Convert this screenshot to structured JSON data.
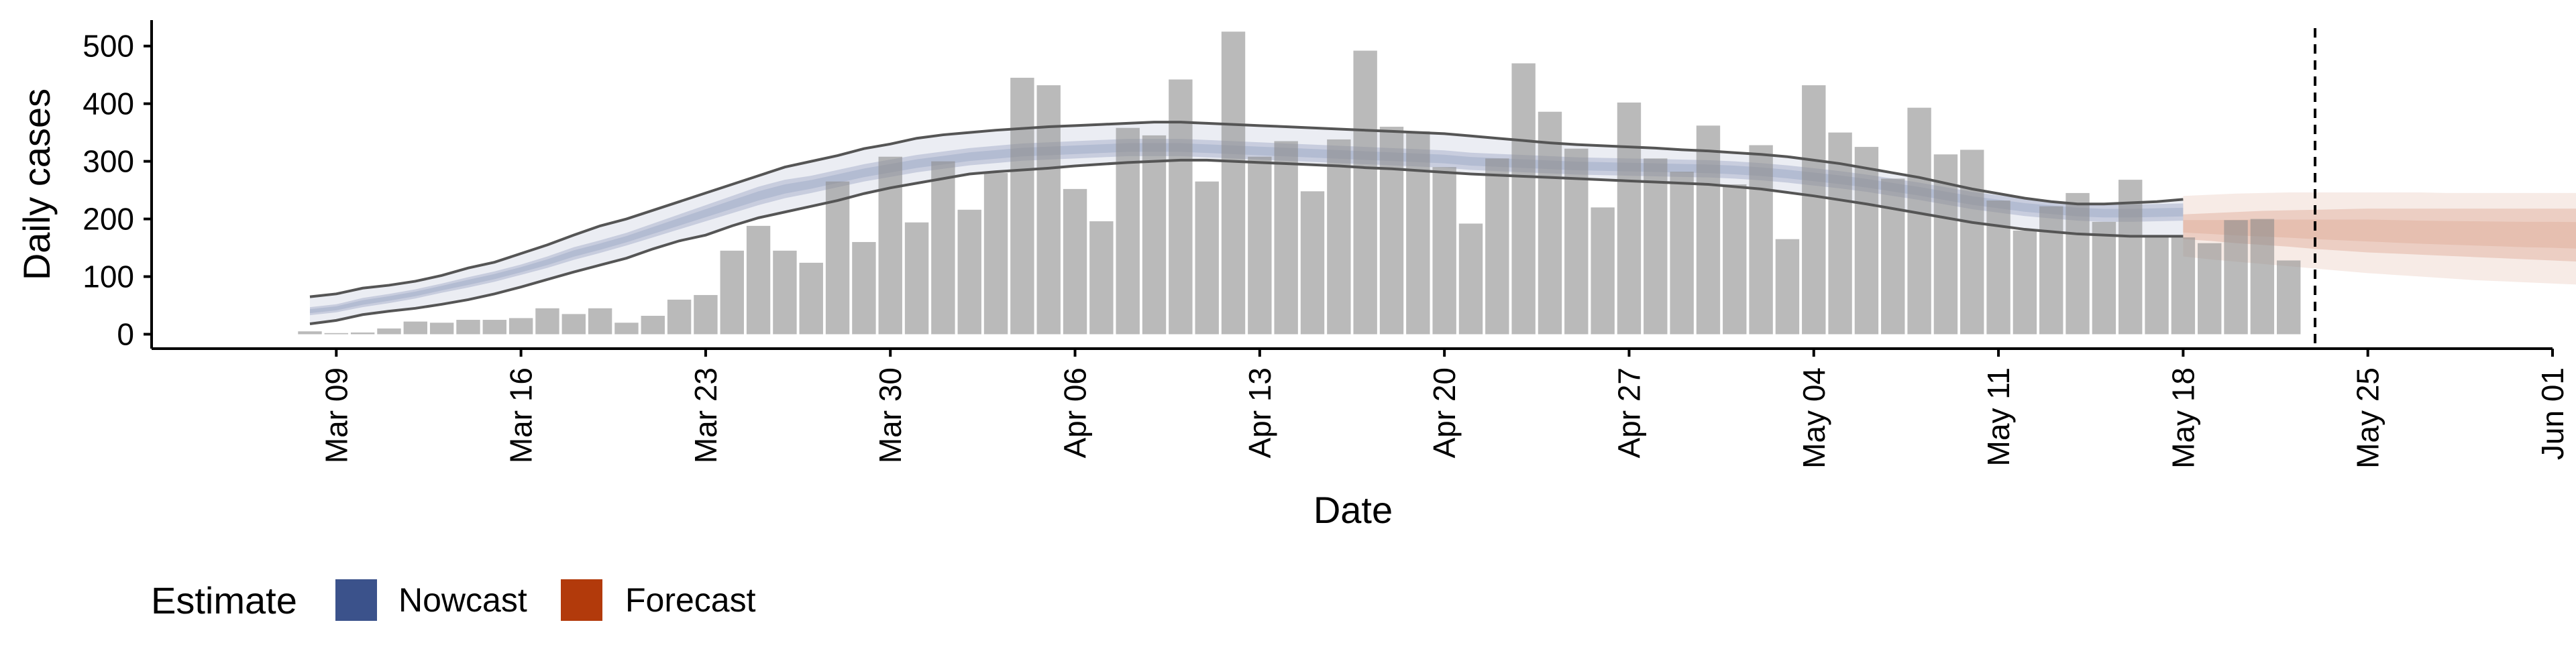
{
  "chart_data": {
    "type": "bar",
    "xlabel": "Date",
    "ylabel": "Daily cases",
    "ylim": [
      -25,
      545
    ],
    "y_ticks": [
      0,
      100,
      200,
      300,
      400,
      500
    ],
    "y_tick_labels": [
      "0",
      "100",
      "200",
      "300",
      "400",
      "500"
    ],
    "x_ticks": [
      "2020-03-09",
      "2020-03-16",
      "2020-03-23",
      "2020-03-30",
      "2020-04-06",
      "2020-04-13",
      "2020-04-20",
      "2020-04-27",
      "2020-05-04",
      "2020-05-11",
      "2020-05-18",
      "2020-05-25",
      "2020-06-01"
    ],
    "x_tick_labels": [
      "Mar 09",
      "Mar 16",
      "Mar 23",
      "Mar 30",
      "Apr 06",
      "Apr 13",
      "Apr 20",
      "Apr 27",
      "May 04",
      "May 11",
      "May 18",
      "May 25",
      "Jun 01"
    ],
    "xlim": [
      "2020-03-02",
      "2020-06-01"
    ],
    "bar_start_date": "2020-03-08",
    "bars": [
      5,
      2,
      3,
      10,
      22,
      20,
      25,
      25,
      28,
      45,
      35,
      45,
      20,
      32,
      60,
      68,
      145,
      188,
      145,
      124,
      265,
      160,
      308,
      194,
      300,
      216,
      280,
      445,
      432,
      252,
      196,
      358,
      345,
      442,
      265,
      525,
      308,
      335,
      248,
      338,
      492,
      360,
      352,
      290,
      192,
      305,
      470,
      386,
      322,
      220,
      402,
      305,
      282,
      362,
      260,
      328,
      165,
      432,
      350,
      325,
      270,
      393,
      312,
      320,
      232,
      180,
      222,
      245,
      195,
      268,
      170,
      168,
      158,
      198,
      200,
      128
    ],
    "data_cutoff_date": "2020-05-23",
    "series": [
      {
        "name": "Nowcast",
        "color": "#3B528B",
        "start_date": "2020-03-08",
        "median": [
          40,
          45,
          55,
          62,
          70,
          80,
          90,
          100,
          112,
          125,
          140,
          152,
          165,
          180,
          195,
          210,
          225,
          240,
          252,
          260,
          270,
          280,
          288,
          296,
          302,
          308,
          312,
          316,
          318,
          320,
          322,
          324,
          324,
          324,
          322,
          320,
          318,
          316,
          314,
          312,
          310,
          308,
          306,
          304,
          300,
          298,
          296,
          294,
          292,
          291,
          290,
          289,
          288,
          287,
          285,
          282,
          278,
          273,
          268,
          262,
          255,
          248,
          240,
          232,
          226,
          220,
          216,
          212,
          210,
          210,
          211,
          212
        ],
        "inner_lower": [
          33,
          38,
          47,
          54,
          62,
          72,
          81,
          91,
          103,
          115,
          129,
          141,
          154,
          168,
          182,
          196,
          210,
          224,
          236,
          245,
          255,
          265,
          273,
          281,
          287,
          293,
          297,
          301,
          303,
          305,
          307,
          309,
          309,
          309,
          307,
          305,
          303,
          301,
          299,
          297,
          295,
          293,
          291,
          289,
          285,
          283,
          281,
          279,
          277,
          276,
          275,
          274,
          273,
          272,
          270,
          267,
          263,
          258,
          253,
          247,
          240,
          233,
          225,
          217,
          211,
          205,
          201,
          197,
          195,
          195,
          196,
          197
        ],
        "inner_upper": [
          47,
          52,
          63,
          70,
          78,
          88,
          99,
          109,
          121,
          135,
          151,
          163,
          176,
          192,
          208,
          224,
          240,
          256,
          268,
          275,
          285,
          295,
          303,
          311,
          317,
          323,
          327,
          331,
          333,
          335,
          337,
          339,
          339,
          339,
          337,
          335,
          333,
          331,
          329,
          327,
          325,
          323,
          321,
          319,
          315,
          313,
          311,
          309,
          307,
          306,
          305,
          304,
          303,
          302,
          300,
          297,
          293,
          288,
          283,
          277,
          270,
          263,
          255,
          247,
          241,
          235,
          231,
          227,
          225,
          225,
          226,
          227
        ],
        "outer_lower": [
          18,
          24,
          34,
          40,
          45,
          52,
          60,
          70,
          82,
          95,
          108,
          120,
          132,
          148,
          162,
          172,
          188,
          202,
          212,
          222,
          232,
          244,
          254,
          262,
          270,
          278,
          282,
          285,
          288,
          292,
          295,
          298,
          300,
          302,
          302,
          300,
          298,
          296,
          294,
          292,
          289,
          287,
          284,
          281,
          278,
          276,
          274,
          272,
          270,
          268,
          266,
          264,
          262,
          260,
          256,
          252,
          246,
          240,
          233,
          226,
          218,
          210,
          202,
          194,
          188,
          182,
          178,
          174,
          172,
          170,
          170,
          170
        ],
        "outer_upper": [
          65,
          70,
          80,
          85,
          92,
          102,
          115,
          125,
          140,
          155,
          172,
          188,
          200,
          215,
          230,
          245,
          260,
          275,
          290,
          300,
          310,
          322,
          330,
          340,
          346,
          350,
          354,
          357,
          360,
          362,
          364,
          366,
          368,
          368,
          366,
          364,
          362,
          360,
          358,
          356,
          354,
          352,
          350,
          348,
          344,
          340,
          336,
          332,
          329,
          327,
          325,
          323,
          320,
          318,
          315,
          312,
          308,
          302,
          296,
          288,
          280,
          272,
          262,
          252,
          244,
          236,
          230,
          226,
          226,
          228,
          230,
          234
        ]
      },
      {
        "name": "Forecast",
        "color": "#B23A0B",
        "start_date": "2020-05-18",
        "median": [
          188,
          186,
          185,
          184,
          183,
          182,
          181,
          180,
          178,
          176,
          175,
          174,
          173,
          172,
          172,
          171,
          170,
          170,
          169
        ],
        "inner_lower": [
          165,
          162,
          158,
          155,
          152,
          148,
          145,
          142,
          140,
          138,
          136,
          134,
          132,
          130,
          128,
          126,
          124,
          122,
          120
        ],
        "inner_upper": [
          208,
          210,
          212,
          214,
          215,
          216,
          217,
          218,
          218,
          218,
          218,
          218,
          218,
          218,
          218,
          218,
          218,
          218,
          218
        ],
        "outer_lower": [
          135,
          130,
          126,
          122,
          118,
          114,
          110,
          106,
          103,
          100,
          97,
          94,
          92,
          90,
          88,
          86,
          84,
          82,
          80
        ],
        "outer_upper": [
          240,
          242,
          244,
          245,
          246,
          246,
          246,
          246,
          246,
          246,
          245,
          245,
          245,
          245,
          245,
          245,
          245,
          245,
          245
        ]
      }
    ],
    "legend": {
      "title": "Estimate",
      "position": "bottom-left",
      "items": [
        {
          "label": "Nowcast",
          "color": "#3B528B"
        },
        {
          "label": "Forecast",
          "color": "#B23A0B"
        }
      ]
    },
    "grid": false
  }
}
